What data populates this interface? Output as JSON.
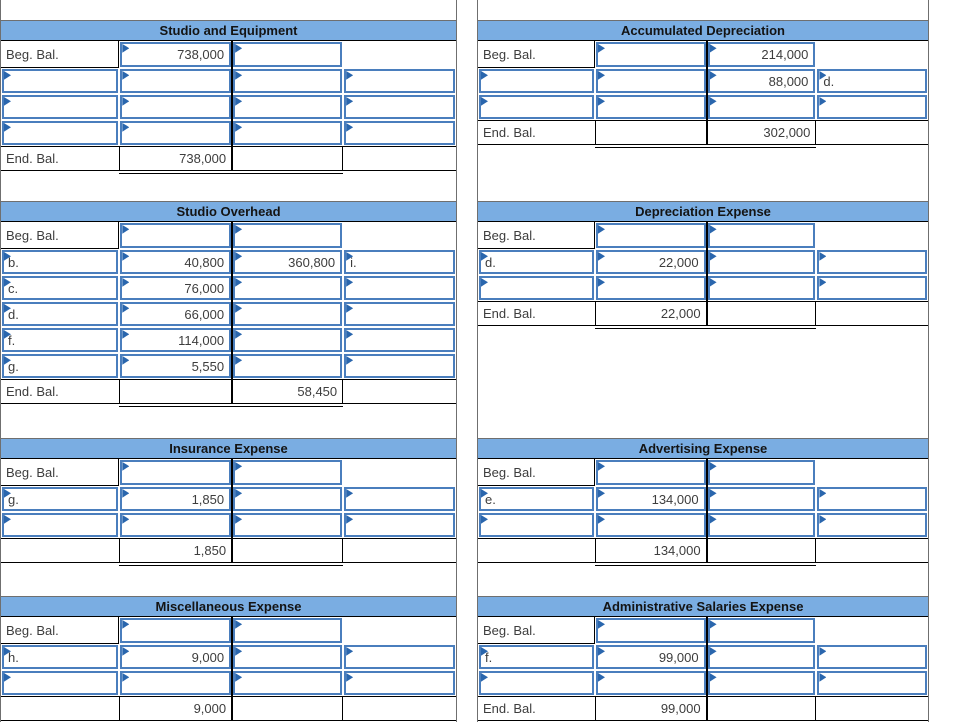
{
  "colors": {
    "header_bg": "#7aade2",
    "entry_border": "#4a7ebd",
    "flag": "#2a66ad"
  },
  "labels": {
    "beginning_balance": "Beg. Bal.",
    "ending_balance": "End. Bal."
  },
  "accounts": [
    {
      "id": "studio-and-equipment",
      "column": "left",
      "title": "Studio and Equipment",
      "beg": {
        "label": "Beg. Bal.",
        "debit": "738,000",
        "credit": ""
      },
      "mids": [
        {
          "l": "",
          "d": "",
          "c": "",
          "r": ""
        },
        {
          "l": "",
          "d": "",
          "c": "",
          "r": ""
        },
        {
          "l": "",
          "d": "",
          "c": "",
          "r": ""
        }
      ],
      "end": {
        "label": "End. Bal.",
        "debit": "738,000",
        "credit": ""
      }
    },
    {
      "id": "studio-overhead",
      "column": "left",
      "title": "Studio Overhead",
      "beg": {
        "label": "Beg. Bal.",
        "debit": "",
        "credit": ""
      },
      "mids": [
        {
          "l": "b.",
          "d": "40,800",
          "c": "360,800",
          "r": "i."
        },
        {
          "l": "c.",
          "d": "76,000",
          "c": "",
          "r": ""
        },
        {
          "l": "d.",
          "d": "66,000",
          "c": "",
          "r": ""
        },
        {
          "l": "f.",
          "d": "114,000",
          "c": "",
          "r": ""
        },
        {
          "l": "g.",
          "d": "5,550",
          "c": "",
          "r": ""
        }
      ],
      "end": {
        "label": "End. Bal.",
        "debit": "",
        "credit": "58,450"
      }
    },
    {
      "id": "insurance-expense",
      "column": "left",
      "title": "Insurance Expense",
      "beg": {
        "label": "Beg. Bal.",
        "debit": "",
        "credit": ""
      },
      "mids": [
        {
          "l": "g.",
          "d": "1,850",
          "c": "",
          "r": ""
        },
        {
          "l": "",
          "d": "",
          "c": "",
          "r": ""
        }
      ],
      "end": {
        "label": "",
        "debit": "1,850",
        "credit": ""
      }
    },
    {
      "id": "miscellaneous-expense",
      "column": "left",
      "title": "Miscellaneous Expense",
      "beg": {
        "label": "Beg. Bal.",
        "debit": "",
        "credit": ""
      },
      "mids": [
        {
          "l": "h.",
          "d": "9,000",
          "c": "",
          "r": ""
        },
        {
          "l": "",
          "d": "",
          "c": "",
          "r": ""
        }
      ],
      "end": {
        "label": "",
        "debit": "9,000",
        "credit": ""
      }
    },
    {
      "id": "accumulated-depreciation",
      "column": "right",
      "title": "Accumulated Depreciation",
      "beg": {
        "label": "Beg. Bal.",
        "debit": "",
        "credit": "214,000"
      },
      "mids": [
        {
          "l": "",
          "d": "",
          "c": "88,000",
          "r": "d."
        },
        {
          "l": "",
          "d": "",
          "c": "",
          "r": ""
        }
      ],
      "end": {
        "label": "End. Bal.",
        "debit": "",
        "credit": "302,000"
      }
    },
    {
      "id": "depreciation-expense",
      "column": "right",
      "title": "Depreciation Expense",
      "beg": {
        "label": "Beg. Bal.",
        "debit": "",
        "credit": ""
      },
      "mids": [
        {
          "l": "d.",
          "d": "22,000",
          "c": "",
          "r": ""
        },
        {
          "l": "",
          "d": "",
          "c": "",
          "r": ""
        }
      ],
      "end": {
        "label": "End. Bal.",
        "debit": "22,000",
        "credit": ""
      }
    },
    {
      "id": "advertising-expense",
      "column": "right",
      "title": "Advertising Expense",
      "beg": {
        "label": "Beg. Bal.",
        "debit": "",
        "credit": ""
      },
      "mids": [
        {
          "l": "e.",
          "d": "134,000",
          "c": "",
          "r": ""
        },
        {
          "l": "",
          "d": "",
          "c": "",
          "r": ""
        }
      ],
      "end": {
        "label": "",
        "debit": "134,000",
        "credit": ""
      }
    },
    {
      "id": "administrative-salaries-expense",
      "column": "right",
      "title": "Administrative Salaries Expense",
      "beg": {
        "label": "Beg. Bal.",
        "debit": "",
        "credit": ""
      },
      "mids": [
        {
          "l": "f.",
          "d": "99,000",
          "c": "",
          "r": ""
        },
        {
          "l": "",
          "d": "",
          "c": "",
          "r": ""
        }
      ],
      "end": {
        "label": "End. Bal.",
        "debit": "99,000",
        "credit": ""
      }
    }
  ]
}
